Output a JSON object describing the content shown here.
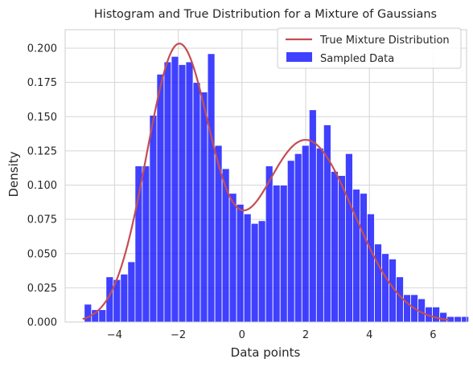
{
  "chart_data": {
    "type": "bar",
    "title": "Histogram and True Distribution for a Mixture of Gaussians",
    "xlabel": "Data points",
    "ylabel": "Density",
    "xlim": [
      -5.55,
      7.05
    ],
    "ylim": [
      0,
      0.2135
    ],
    "xticks": [
      -4,
      -2,
      0,
      2,
      4,
      6
    ],
    "xtick_labels": [
      "−4",
      "−2",
      "0",
      "2",
      "4",
      "6"
    ],
    "yticks": [
      0,
      0.025,
      0.05,
      0.075,
      0.1,
      0.125,
      0.15,
      0.175,
      0.2
    ],
    "ytick_labels": [
      "0.000",
      "0.025",
      "0.050",
      "0.075",
      "0.100",
      "0.125",
      "0.150",
      "0.175",
      "0.200"
    ],
    "grid": true,
    "legend_position": "top-right",
    "histogram": {
      "name": "Sampled Data",
      "color": "#0000ff",
      "bin_edges_start": -4.95,
      "bin_width": 0.2277,
      "values": [
        0.013,
        0.009,
        0.009,
        0.033,
        0.031,
        0.035,
        0.044,
        0.114,
        0.114,
        0.151,
        0.181,
        0.19,
        0.194,
        0.188,
        0.19,
        0.175,
        0.168,
        0.196,
        0.129,
        0.112,
        0.094,
        0.086,
        0.079,
        0.072,
        0.074,
        0.114,
        0.1,
        0.1,
        0.118,
        0.123,
        0.129,
        0.155,
        0.127,
        0.144,
        0.11,
        0.107,
        0.123,
        0.097,
        0.094,
        0.079,
        0.057,
        0.05,
        0.046,
        0.033,
        0.02,
        0.02,
        0.017,
        0.011,
        0.011,
        0.007,
        0.004,
        0.004,
        0.004
      ]
    },
    "line": {
      "name": "True Mixture Distribution",
      "color": "#c44e52",
      "x_range": [
        -5,
        6.5
      ],
      "components": [
        {
          "weight": 0.5,
          "mean": -2,
          "std": 1
        },
        {
          "weight": 0.5,
          "mean": 2,
          "std": 1.5
        }
      ]
    },
    "legend": [
      "True Mixture Distribution",
      "Sampled Data"
    ]
  }
}
